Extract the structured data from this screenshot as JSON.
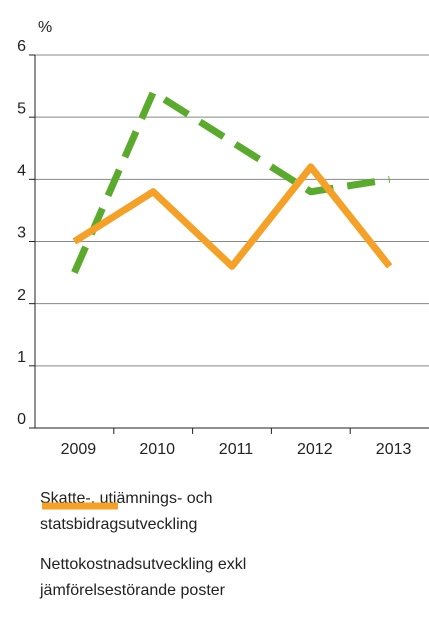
{
  "chart_data": {
    "type": "line",
    "y_label": "%",
    "categories": [
      "2009",
      "2010",
      "2011",
      "2012",
      "2013"
    ],
    "series": [
      {
        "name": "Skatte-, utjämnings- och statsbidragsutveckling",
        "color": "#5aab2d",
        "dashed": true,
        "values": [
          2.5,
          5.4,
          4.6,
          3.8,
          4.0
        ]
      },
      {
        "name": "Nettokostnadsutveckling exkl jämförelsestörande poster",
        "color": "#f5a026",
        "dashed": false,
        "values": [
          3.0,
          3.8,
          2.6,
          4.2,
          2.6
        ]
      }
    ],
    "ylim": [
      0,
      6
    ],
    "yticks": [
      0,
      1,
      2,
      3,
      4,
      5,
      6
    ],
    "grid": true
  }
}
